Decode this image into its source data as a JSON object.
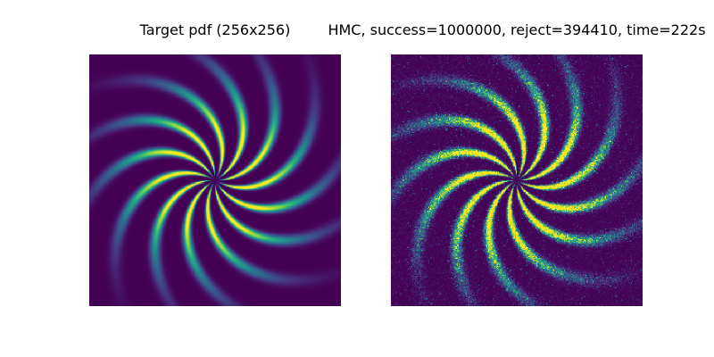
{
  "chart_data": [
    {
      "type": "heatmap",
      "title": "Target pdf (256x256)",
      "grid": false,
      "axes_visible": false,
      "colormap": "viridis",
      "resolution": [
        256,
        256
      ],
      "arms": 12,
      "rendering": "smooth"
    },
    {
      "type": "heatmap",
      "title": "HMC, success=1000000, reject=394410, time=222s",
      "grid": false,
      "axes_visible": false,
      "colormap": "viridis",
      "resolution": [
        256,
        256
      ],
      "arms": 12,
      "rendering": "sampled-noisy"
    }
  ],
  "colors": {
    "background": "#ffffff",
    "cmap_low": "#440154",
    "cmap_mid": "#21918c",
    "cmap_high": "#fde725"
  }
}
